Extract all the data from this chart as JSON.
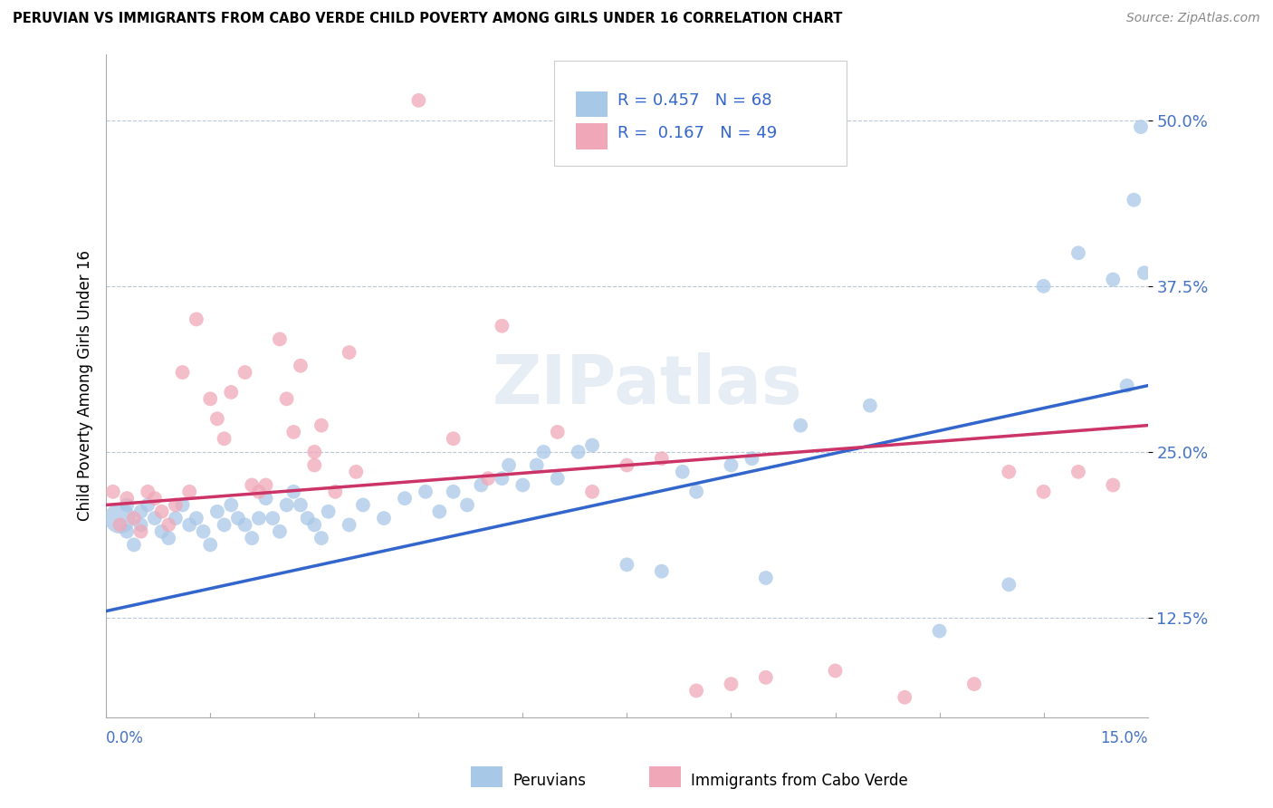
{
  "title": "PERUVIAN VS IMMIGRANTS FROM CABO VERDE CHILD POVERTY AMONG GIRLS UNDER 16 CORRELATION CHART",
  "source": "Source: ZipAtlas.com",
  "ylabel": "Child Poverty Among Girls Under 16",
  "xlim": [
    0.0,
    15.0
  ],
  "ylim": [
    5.0,
    55.0
  ],
  "yticks": [
    12.5,
    25.0,
    37.5,
    50.0
  ],
  "blue_R": 0.457,
  "blue_N": 68,
  "pink_R": 0.167,
  "pink_N": 49,
  "blue_color": "#a8c8e8",
  "pink_color": "#f0a8b8",
  "blue_line_color": "#3366cc",
  "pink_line_color": "#cc3366",
  "legend1_label": "Peruvians",
  "legend2_label": "Immigrants from Cabo Verde",
  "blue_scatter_x": [
    0.2,
    0.3,
    0.3,
    0.4,
    0.5,
    0.5,
    0.6,
    0.7,
    0.8,
    0.9,
    1.0,
    1.1,
    1.2,
    1.3,
    1.4,
    1.5,
    1.6,
    1.7,
    1.8,
    1.9,
    2.0,
    2.1,
    2.2,
    2.3,
    2.4,
    2.5,
    2.6,
    2.7,
    2.8,
    2.9,
    3.0,
    3.1,
    3.2,
    3.5,
    3.7,
    4.0,
    4.3,
    4.6,
    4.8,
    5.0,
    5.2,
    5.4,
    5.7,
    5.8,
    6.0,
    6.2,
    6.3,
    6.5,
    6.8,
    7.0,
    7.5,
    8.0,
    8.3,
    8.5,
    9.0,
    9.3,
    9.5,
    10.0,
    11.0,
    12.0,
    13.0,
    13.5,
    14.0,
    14.5,
    14.7,
    14.8,
    14.9,
    14.95
  ],
  "blue_scatter_y": [
    20.0,
    19.0,
    21.0,
    18.0,
    20.5,
    19.5,
    21.0,
    20.0,
    19.0,
    18.5,
    20.0,
    21.0,
    19.5,
    20.0,
    19.0,
    18.0,
    20.5,
    19.5,
    21.0,
    20.0,
    19.5,
    18.5,
    20.0,
    21.5,
    20.0,
    19.0,
    21.0,
    22.0,
    21.0,
    20.0,
    19.5,
    18.5,
    20.5,
    19.5,
    21.0,
    20.0,
    21.5,
    22.0,
    20.5,
    22.0,
    21.0,
    22.5,
    23.0,
    24.0,
    22.5,
    24.0,
    25.0,
    23.0,
    25.0,
    25.5,
    16.5,
    16.0,
    23.5,
    22.0,
    24.0,
    24.5,
    15.5,
    27.0,
    28.5,
    11.5,
    15.0,
    37.5,
    40.0,
    38.0,
    30.0,
    44.0,
    49.5,
    38.5
  ],
  "pink_scatter_x": [
    0.1,
    0.2,
    0.3,
    0.4,
    0.5,
    0.6,
    0.7,
    0.8,
    0.9,
    1.0,
    1.1,
    1.2,
    1.3,
    1.5,
    1.6,
    1.7,
    1.8,
    2.0,
    2.1,
    2.2,
    2.3,
    2.5,
    2.6,
    2.7,
    2.8,
    3.0,
    3.0,
    3.1,
    3.3,
    3.5,
    3.6,
    4.5,
    5.0,
    5.5,
    5.7,
    6.5,
    7.0,
    7.5,
    8.0,
    8.5,
    9.0,
    9.5,
    10.5,
    11.5,
    12.5,
    13.0,
    13.5,
    14.0,
    14.5
  ],
  "pink_scatter_y": [
    22.0,
    19.5,
    21.5,
    20.0,
    19.0,
    22.0,
    21.5,
    20.5,
    19.5,
    21.0,
    31.0,
    22.0,
    35.0,
    29.0,
    27.5,
    26.0,
    29.5,
    31.0,
    22.5,
    22.0,
    22.5,
    33.5,
    29.0,
    26.5,
    31.5,
    25.0,
    24.0,
    27.0,
    22.0,
    32.5,
    23.5,
    51.5,
    26.0,
    23.0,
    34.5,
    26.5,
    22.0,
    24.0,
    24.5,
    7.0,
    7.5,
    8.0,
    8.5,
    6.5,
    7.5,
    23.5,
    22.0,
    23.5,
    22.5
  ]
}
